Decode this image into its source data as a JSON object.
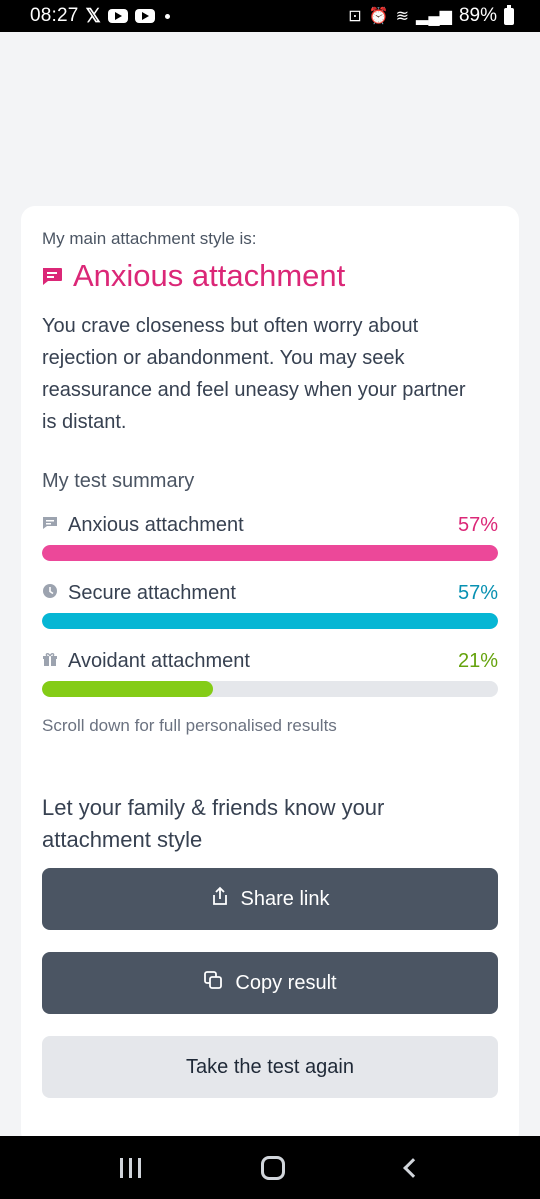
{
  "status_bar": {
    "time": "08:27",
    "battery": "89%"
  },
  "result": {
    "lead": "My main attachment style is:",
    "style": "Anxious attachment",
    "description": "You crave closeness but often worry about rejection or abandonment. You may seek reassurance and feel uneasy when your partner is distant."
  },
  "summary": {
    "title": "My test summary",
    "items": [
      {
        "label": "Anxious attachment",
        "percent": "57%",
        "value": 1.0,
        "color": "#ec4899",
        "text_color": "#db2777",
        "icon": "chat-icon"
      },
      {
        "label": "Secure attachment",
        "percent": "57%",
        "value": 1.0,
        "color": "#06b6d4",
        "text_color": "#0891b2",
        "icon": "clock-icon"
      },
      {
        "label": "Avoidant attachment",
        "percent": "21%",
        "value": 0.375,
        "color": "#84cc16",
        "text_color": "#65a30d",
        "icon": "gift-icon"
      }
    ],
    "note": "Scroll down for full personalised results"
  },
  "share": {
    "title": "Let your family & friends know your attachment style",
    "share_link_label": "Share link",
    "copy_result_label": "Copy result",
    "retake_label": "Take the test again"
  },
  "colors": {
    "accent": "#db2777",
    "button_dark": "#4b5563",
    "button_light": "#e5e7eb"
  }
}
